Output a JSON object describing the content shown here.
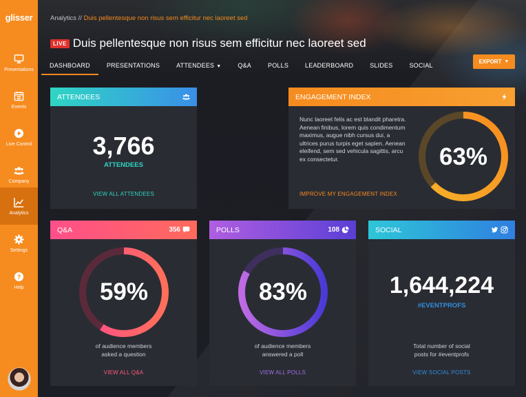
{
  "app": {
    "logo": "glisser"
  },
  "sidebar": {
    "items": [
      {
        "label": "Presentations",
        "icon": "monitor-icon"
      },
      {
        "label": "Events",
        "icon": "calendar-icon"
      },
      {
        "label": "Live Control",
        "icon": "play-icon"
      },
      {
        "label": "Company",
        "icon": "users-icon"
      },
      {
        "label": "Analytics",
        "icon": "chart-icon",
        "active": true
      },
      {
        "label": "Settings",
        "icon": "gear-icon"
      },
      {
        "label": "Help",
        "icon": "help-icon"
      }
    ]
  },
  "header": {
    "breadcrumb_root": "Analytics",
    "breadcrumb_sep": " // ",
    "breadcrumb_current": "Duis pellentesque non risus sem efficitur nec laoreet sed",
    "live_badge": "LIVE",
    "title": "Duis pellentesque non risus sem efficitur nec laoreet sed",
    "export_label": "EXPORT",
    "tabs": [
      {
        "label": "DASHBOARD",
        "active": true
      },
      {
        "label": "PRESENTATIONS"
      },
      {
        "label": "ATTENDEES"
      },
      {
        "label": "Q&A"
      },
      {
        "label": "POLLS"
      },
      {
        "label": "LEADERBOARD"
      },
      {
        "label": "SLIDES"
      },
      {
        "label": "SOCIAL"
      }
    ]
  },
  "cards": {
    "attendees": {
      "title": "ATTENDEES",
      "value": "3,766",
      "label": "ATTENDEES",
      "link": "VIEW ALL ATTENDEES",
      "icon": "users-icon",
      "accent": "#2fd6c4"
    },
    "engagement": {
      "title": "ENGAGEMENT INDEX",
      "text": "Nunc laoreet felis ac est blandit pharetra. Aenean finibus, lorem quis condimentum maximus, augue nibh cursus dui, a ultrices purus turpis eget sapien. Aenean eleifend, sem sed vehicula sagittis, arcu ex consectetur.",
      "value": "63%",
      "percent": 63,
      "link": "IMPROVE MY ENGAGEMENT INDEX",
      "icon": "bolt-icon",
      "accent": "#f68b1f"
    },
    "qa": {
      "title": "Q&A",
      "count": "356",
      "value": "59%",
      "percent": 59,
      "desc_line1": "of audience members",
      "desc_line2": "asked a question",
      "link": "VIEW ALL Q&A",
      "icon": "chat-icon",
      "accent": "#ff5a6e"
    },
    "polls": {
      "title": "POLLS",
      "count": "108",
      "value": "83%",
      "percent": 83,
      "desc_line1": "of audience members",
      "desc_line2": "answered a poll",
      "link": "VIEW ALL POLLS",
      "icon": "pie-icon",
      "accent": "#8a5ce6"
    },
    "social": {
      "title": "SOCIAL",
      "value": "1,644,224",
      "hashtag": "#EVENTPROFS",
      "desc_line1": "Total number of social",
      "desc_line2": "posts for #eventprofs",
      "link": "VIEW SOCIAL POSTS",
      "icons": [
        "twitter-icon",
        "instagram-icon"
      ],
      "accent": "#2f8fe0"
    }
  }
}
